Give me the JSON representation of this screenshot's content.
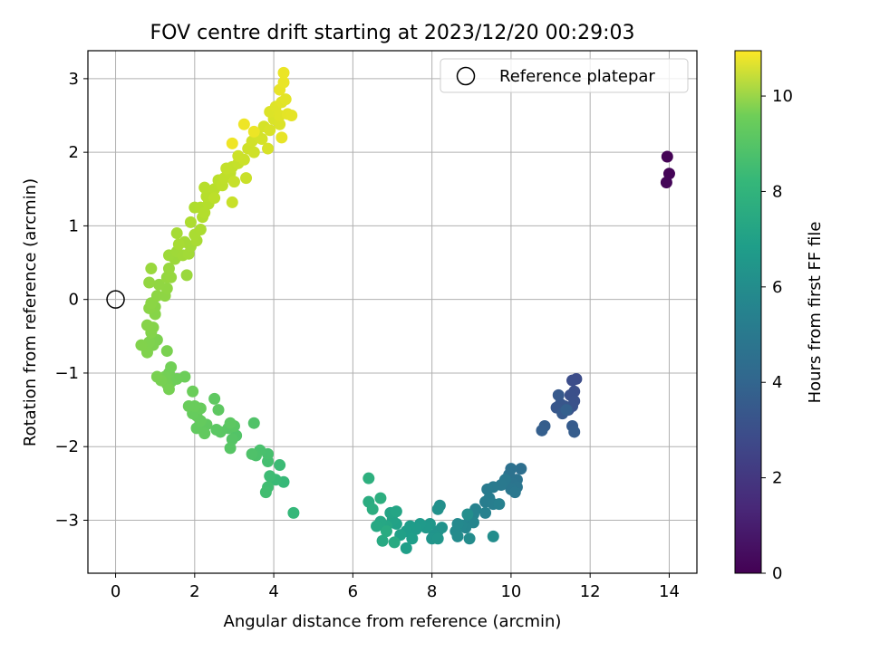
{
  "chart_data": {
    "type": "scatter",
    "title": "FOV centre drift starting at 2023/12/20 00:29:03",
    "xlabel": "Angular distance from reference (arcmin)",
    "ylabel": "Rotation from reference (arcmin)",
    "xlim": [
      -0.7,
      14.7
    ],
    "ylim": [
      -3.72,
      3.38
    ],
    "xticks": [
      0,
      2,
      4,
      6,
      8,
      10,
      12,
      14
    ],
    "xtick_labels": [
      "0",
      "2",
      "4",
      "6",
      "8",
      "10",
      "12",
      "14"
    ],
    "yticks": [
      -3,
      -2,
      -1,
      0,
      1,
      2,
      3
    ],
    "ytick_labels": [
      "−3",
      "−2",
      "−1",
      "0",
      "1",
      "2",
      "3"
    ],
    "grid": true,
    "legend": {
      "position": "top-right",
      "label": "Reference platepar"
    },
    "reference_point": {
      "x": 0,
      "y": 0
    },
    "colorbar": {
      "label": "Hours from first FF file",
      "range": [
        0,
        10.95
      ],
      "ticks": [
        0,
        2,
        4,
        6,
        8,
        10
      ],
      "tick_labels": [
        "0",
        "2",
        "4",
        "6",
        "8",
        "10"
      ],
      "colormap": "viridis"
    },
    "points": [
      {
        "x": 13.95,
        "y": 1.94,
        "t": 0.05
      },
      {
        "x": 14.0,
        "y": 1.71,
        "t": 0.1
      },
      {
        "x": 13.93,
        "y": 1.59,
        "t": 0.15
      },
      {
        "x": 11.65,
        "y": -1.08,
        "t": 2.55
      },
      {
        "x": 11.55,
        "y": -1.1,
        "t": 2.6
      },
      {
        "x": 11.6,
        "y": -1.25,
        "t": 2.65
      },
      {
        "x": 11.5,
        "y": -1.3,
        "t": 2.7
      },
      {
        "x": 11.6,
        "y": -1.38,
        "t": 2.75
      },
      {
        "x": 11.55,
        "y": -1.45,
        "t": 2.8
      },
      {
        "x": 11.45,
        "y": -1.5,
        "t": 2.85
      },
      {
        "x": 11.35,
        "y": -1.45,
        "t": 2.9
      },
      {
        "x": 11.25,
        "y": -1.42,
        "t": 2.95
      },
      {
        "x": 11.15,
        "y": -1.47,
        "t": 3.0
      },
      {
        "x": 11.2,
        "y": -1.3,
        "t": 3.05
      },
      {
        "x": 11.3,
        "y": -1.55,
        "t": 3.1
      },
      {
        "x": 11.55,
        "y": -1.72,
        "t": 3.15
      },
      {
        "x": 11.6,
        "y": -1.8,
        "t": 3.2
      },
      {
        "x": 10.85,
        "y": -1.72,
        "t": 3.25
      },
      {
        "x": 10.78,
        "y": -1.78,
        "t": 3.3
      },
      {
        "x": 11.4,
        "y": -1.5,
        "t": 3.35
      },
      {
        "x": 10.25,
        "y": -2.3,
        "t": 4.0
      },
      {
        "x": 10.0,
        "y": -2.3,
        "t": 4.05
      },
      {
        "x": 9.95,
        "y": -2.38,
        "t": 4.1
      },
      {
        "x": 10.15,
        "y": -2.45,
        "t": 4.15
      },
      {
        "x": 10.05,
        "y": -2.5,
        "t": 4.2
      },
      {
        "x": 10.15,
        "y": -2.55,
        "t": 4.25
      },
      {
        "x": 10.0,
        "y": -2.58,
        "t": 4.3
      },
      {
        "x": 10.1,
        "y": -2.62,
        "t": 4.35
      },
      {
        "x": 9.85,
        "y": -2.45,
        "t": 4.4
      },
      {
        "x": 9.75,
        "y": -2.52,
        "t": 4.45
      },
      {
        "x": 9.55,
        "y": -2.55,
        "t": 4.5
      },
      {
        "x": 9.4,
        "y": -2.58,
        "t": 4.55
      },
      {
        "x": 9.45,
        "y": -2.7,
        "t": 4.6
      },
      {
        "x": 9.35,
        "y": -2.75,
        "t": 4.65
      },
      {
        "x": 9.55,
        "y": -2.78,
        "t": 4.7
      },
      {
        "x": 9.7,
        "y": -2.78,
        "t": 4.75
      },
      {
        "x": 9.35,
        "y": -2.9,
        "t": 4.8
      },
      {
        "x": 9.1,
        "y": -2.85,
        "t": 4.85
      },
      {
        "x": 9.05,
        "y": -2.92,
        "t": 4.9
      },
      {
        "x": 8.95,
        "y": -3.0,
        "t": 4.95
      },
      {
        "x": 9.05,
        "y": -3.03,
        "t": 5.0
      },
      {
        "x": 8.85,
        "y": -3.1,
        "t": 5.05
      },
      {
        "x": 8.75,
        "y": -3.07,
        "t": 5.1
      },
      {
        "x": 8.65,
        "y": -3.05,
        "t": 5.15
      },
      {
        "x": 8.6,
        "y": -3.15,
        "t": 5.2
      },
      {
        "x": 8.65,
        "y": -3.22,
        "t": 5.25
      },
      {
        "x": 8.95,
        "y": -3.25,
        "t": 5.3
      },
      {
        "x": 9.55,
        "y": -3.22,
        "t": 5.35
      },
      {
        "x": 8.9,
        "y": -2.92,
        "t": 5.4
      },
      {
        "x": 8.2,
        "y": -2.8,
        "t": 5.45
      },
      {
        "x": 8.15,
        "y": -2.85,
        "t": 5.5
      },
      {
        "x": 8.25,
        "y": -3.1,
        "t": 5.55
      },
      {
        "x": 8.15,
        "y": -3.15,
        "t": 5.6
      },
      {
        "x": 8.05,
        "y": -3.2,
        "t": 5.65
      },
      {
        "x": 8.0,
        "y": -3.25,
        "t": 5.7
      },
      {
        "x": 8.15,
        "y": -3.25,
        "t": 5.75
      },
      {
        "x": 7.95,
        "y": -3.05,
        "t": 5.8
      },
      {
        "x": 7.85,
        "y": -3.1,
        "t": 5.85
      },
      {
        "x": 7.7,
        "y": -3.05,
        "t": 5.9
      },
      {
        "x": 7.6,
        "y": -3.12,
        "t": 5.95
      },
      {
        "x": 7.45,
        "y": -3.08,
        "t": 6.0
      },
      {
        "x": 7.35,
        "y": -3.15,
        "t": 6.05
      },
      {
        "x": 7.5,
        "y": -3.25,
        "t": 6.1
      },
      {
        "x": 7.35,
        "y": -3.38,
        "t": 6.15
      },
      {
        "x": 7.2,
        "y": -3.2,
        "t": 6.2
      },
      {
        "x": 7.1,
        "y": -3.05,
        "t": 6.25
      },
      {
        "x": 7.0,
        "y": -3.0,
        "t": 6.3
      },
      {
        "x": 6.95,
        "y": -2.9,
        "t": 6.35
      },
      {
        "x": 7.1,
        "y": -2.88,
        "t": 6.4
      },
      {
        "x": 6.85,
        "y": -3.08,
        "t": 6.45
      },
      {
        "x": 6.7,
        "y": -3.02,
        "t": 6.5
      },
      {
        "x": 6.6,
        "y": -3.08,
        "t": 6.55
      },
      {
        "x": 6.75,
        "y": -3.28,
        "t": 6.6
      },
      {
        "x": 7.05,
        "y": -3.3,
        "t": 6.65
      },
      {
        "x": 6.85,
        "y": -3.15,
        "t": 6.7
      },
      {
        "x": 6.4,
        "y": -2.75,
        "t": 6.75
      },
      {
        "x": 6.5,
        "y": -2.85,
        "t": 6.8
      },
      {
        "x": 6.7,
        "y": -2.7,
        "t": 6.85
      },
      {
        "x": 6.4,
        "y": -2.43,
        "t": 6.9
      },
      {
        "x": 4.5,
        "y": -2.9,
        "t": 7.3
      },
      {
        "x": 4.25,
        "y": -2.48,
        "t": 7.35
      },
      {
        "x": 4.05,
        "y": -2.45,
        "t": 7.4
      },
      {
        "x": 4.15,
        "y": -2.25,
        "t": 7.45
      },
      {
        "x": 3.9,
        "y": -2.4,
        "t": 7.5
      },
      {
        "x": 3.85,
        "y": -2.55,
        "t": 7.55
      },
      {
        "x": 3.8,
        "y": -2.62,
        "t": 7.6
      },
      {
        "x": 3.85,
        "y": -2.2,
        "t": 7.65
      },
      {
        "x": 3.85,
        "y": -2.1,
        "t": 7.7
      },
      {
        "x": 3.65,
        "y": -2.05,
        "t": 7.75
      },
      {
        "x": 3.55,
        "y": -2.12,
        "t": 7.8
      },
      {
        "x": 3.45,
        "y": -2.1,
        "t": 7.85
      },
      {
        "x": 3.5,
        "y": -1.68,
        "t": 7.9
      },
      {
        "x": 3.05,
        "y": -1.85,
        "t": 7.95
      },
      {
        "x": 2.95,
        "y": -1.9,
        "t": 8.0
      },
      {
        "x": 2.9,
        "y": -2.02,
        "t": 8.02
      },
      {
        "x": 2.85,
        "y": -1.75,
        "t": 8.05
      },
      {
        "x": 3.0,
        "y": -1.72,
        "t": 8.07
      },
      {
        "x": 2.65,
        "y": -1.8,
        "t": 8.1
      },
      {
        "x": 2.55,
        "y": -1.77,
        "t": 8.12
      },
      {
        "x": 2.9,
        "y": -1.68,
        "t": 8.15
      },
      {
        "x": 2.6,
        "y": -1.5,
        "t": 8.17
      },
      {
        "x": 2.5,
        "y": -1.35,
        "t": 8.2
      },
      {
        "x": 2.3,
        "y": -1.7,
        "t": 8.22
      },
      {
        "x": 2.25,
        "y": -1.82,
        "t": 8.25
      },
      {
        "x": 2.05,
        "y": -1.75,
        "t": 8.27
      },
      {
        "x": 2.15,
        "y": -1.65,
        "t": 8.3
      },
      {
        "x": 2.05,
        "y": -1.58,
        "t": 8.32
      },
      {
        "x": 1.95,
        "y": -1.55,
        "t": 8.35
      },
      {
        "x": 2.15,
        "y": -1.48,
        "t": 8.37
      },
      {
        "x": 2.0,
        "y": -1.45,
        "t": 8.4
      },
      {
        "x": 1.85,
        "y": -1.45,
        "t": 8.42
      },
      {
        "x": 1.95,
        "y": -1.25,
        "t": 8.45
      },
      {
        "x": 1.75,
        "y": -1.05,
        "t": 8.47
      },
      {
        "x": 1.55,
        "y": -1.08,
        "t": 8.5
      },
      {
        "x": 1.4,
        "y": -1.12,
        "t": 8.52
      },
      {
        "x": 1.35,
        "y": -1.0,
        "t": 8.55
      },
      {
        "x": 1.4,
        "y": -0.92,
        "t": 8.57
      },
      {
        "x": 1.25,
        "y": -1.05,
        "t": 8.6
      },
      {
        "x": 1.3,
        "y": -1.15,
        "t": 8.62
      },
      {
        "x": 1.35,
        "y": -1.22,
        "t": 8.65
      },
      {
        "x": 1.15,
        "y": -1.1,
        "t": 8.67
      },
      {
        "x": 1.05,
        "y": -1.05,
        "t": 8.7
      },
      {
        "x": 1.3,
        "y": -0.7,
        "t": 8.72
      },
      {
        "x": 1.05,
        "y": -0.55,
        "t": 8.75
      },
      {
        "x": 0.95,
        "y": -0.62,
        "t": 8.77
      },
      {
        "x": 0.85,
        "y": -0.58,
        "t": 8.8
      },
      {
        "x": 0.8,
        "y": -0.72,
        "t": 8.82
      },
      {
        "x": 0.65,
        "y": -0.62,
        "t": 8.85
      },
      {
        "x": 0.9,
        "y": -0.45,
        "t": 8.87
      },
      {
        "x": 0.95,
        "y": -0.38,
        "t": 8.9
      },
      {
        "x": 0.8,
        "y": -0.35,
        "t": 8.92
      },
      {
        "x": 1.0,
        "y": -0.2,
        "t": 8.95
      },
      {
        "x": 1.0,
        "y": -0.1,
        "t": 8.97
      },
      {
        "x": 0.85,
        "y": -0.12,
        "t": 9.0
      },
      {
        "x": 0.9,
        "y": -0.05,
        "t": 9.02
      },
      {
        "x": 1.05,
        "y": 0.05,
        "t": 9.05
      },
      {
        "x": 1.25,
        "y": 0.05,
        "t": 9.07
      },
      {
        "x": 1.3,
        "y": 0.15,
        "t": 9.1
      },
      {
        "x": 1.1,
        "y": 0.2,
        "t": 9.12
      },
      {
        "x": 0.85,
        "y": 0.23,
        "t": 9.15
      },
      {
        "x": 1.3,
        "y": 0.3,
        "t": 9.17
      },
      {
        "x": 1.4,
        "y": 0.3,
        "t": 9.2
      },
      {
        "x": 1.35,
        "y": 0.42,
        "t": 9.22
      },
      {
        "x": 0.9,
        "y": 0.42,
        "t": 9.25
      },
      {
        "x": 1.8,
        "y": 0.33,
        "t": 9.27
      },
      {
        "x": 1.5,
        "y": 0.55,
        "t": 9.3
      },
      {
        "x": 1.35,
        "y": 0.6,
        "t": 9.32
      },
      {
        "x": 1.55,
        "y": 0.65,
        "t": 9.35
      },
      {
        "x": 1.7,
        "y": 0.6,
        "t": 9.37
      },
      {
        "x": 1.85,
        "y": 0.62,
        "t": 9.4
      },
      {
        "x": 1.9,
        "y": 0.72,
        "t": 9.42
      },
      {
        "x": 1.75,
        "y": 0.78,
        "t": 9.45
      },
      {
        "x": 1.55,
        "y": 0.9,
        "t": 9.47
      },
      {
        "x": 1.6,
        "y": 0.75,
        "t": 9.5
      },
      {
        "x": 2.05,
        "y": 0.8,
        "t": 9.52
      },
      {
        "x": 2.0,
        "y": 0.88,
        "t": 9.55
      },
      {
        "x": 2.15,
        "y": 0.95,
        "t": 9.57
      },
      {
        "x": 1.9,
        "y": 1.05,
        "t": 9.6
      },
      {
        "x": 2.0,
        "y": 1.25,
        "t": 9.62
      },
      {
        "x": 2.2,
        "y": 1.12,
        "t": 9.65
      },
      {
        "x": 2.15,
        "y": 1.25,
        "t": 9.67
      },
      {
        "x": 2.25,
        "y": 1.18,
        "t": 9.7
      },
      {
        "x": 2.35,
        "y": 1.3,
        "t": 9.72
      },
      {
        "x": 2.3,
        "y": 1.4,
        "t": 9.75
      },
      {
        "x": 2.25,
        "y": 1.52,
        "t": 9.77
      },
      {
        "x": 2.5,
        "y": 1.5,
        "t": 9.8
      },
      {
        "x": 2.6,
        "y": 1.62,
        "t": 9.82
      },
      {
        "x": 2.5,
        "y": 1.38,
        "t": 9.85
      },
      {
        "x": 2.7,
        "y": 1.55,
        "t": 9.87
      },
      {
        "x": 2.75,
        "y": 1.65,
        "t": 9.9
      },
      {
        "x": 2.9,
        "y": 1.72,
        "t": 9.92
      },
      {
        "x": 2.95,
        "y": 1.8,
        "t": 9.95
      },
      {
        "x": 2.8,
        "y": 1.78,
        "t": 9.97
      },
      {
        "x": 3.1,
        "y": 1.85,
        "t": 10.0
      },
      {
        "x": 3.0,
        "y": 1.6,
        "t": 10.02
      },
      {
        "x": 2.95,
        "y": 1.32,
        "t": 10.05
      },
      {
        "x": 3.3,
        "y": 1.65,
        "t": 10.07
      },
      {
        "x": 3.25,
        "y": 1.9,
        "t": 10.1
      },
      {
        "x": 3.1,
        "y": 1.95,
        "t": 10.12
      },
      {
        "x": 3.35,
        "y": 2.05,
        "t": 10.15
      },
      {
        "x": 3.5,
        "y": 2.0,
        "t": 10.17
      },
      {
        "x": 3.45,
        "y": 2.15,
        "t": 10.2
      },
      {
        "x": 3.6,
        "y": 2.22,
        "t": 10.22
      },
      {
        "x": 3.7,
        "y": 2.18,
        "t": 10.25
      },
      {
        "x": 3.75,
        "y": 2.35,
        "t": 10.27
      },
      {
        "x": 3.85,
        "y": 2.05,
        "t": 10.3
      },
      {
        "x": 3.9,
        "y": 2.3,
        "t": 10.32
      },
      {
        "x": 4.0,
        "y": 2.45,
        "t": 10.35
      },
      {
        "x": 4.15,
        "y": 2.38,
        "t": 10.37
      },
      {
        "x": 3.9,
        "y": 2.55,
        "t": 10.4
      },
      {
        "x": 4.05,
        "y": 2.62,
        "t": 10.42
      },
      {
        "x": 4.15,
        "y": 2.5,
        "t": 10.45
      },
      {
        "x": 4.2,
        "y": 2.68,
        "t": 10.47
      },
      {
        "x": 4.3,
        "y": 2.72,
        "t": 10.5
      },
      {
        "x": 4.35,
        "y": 2.52,
        "t": 10.52
      },
      {
        "x": 4.45,
        "y": 2.5,
        "t": 10.55
      },
      {
        "x": 4.2,
        "y": 2.2,
        "t": 10.57
      },
      {
        "x": 4.15,
        "y": 2.85,
        "t": 10.6
      },
      {
        "x": 4.25,
        "y": 2.95,
        "t": 10.62
      },
      {
        "x": 4.25,
        "y": 3.08,
        "t": 10.65
      },
      {
        "x": 3.5,
        "y": 2.28,
        "t": 10.67
      },
      {
        "x": 3.25,
        "y": 2.38,
        "t": 10.7
      },
      {
        "x": 2.95,
        "y": 2.12,
        "t": 10.72
      }
    ]
  }
}
